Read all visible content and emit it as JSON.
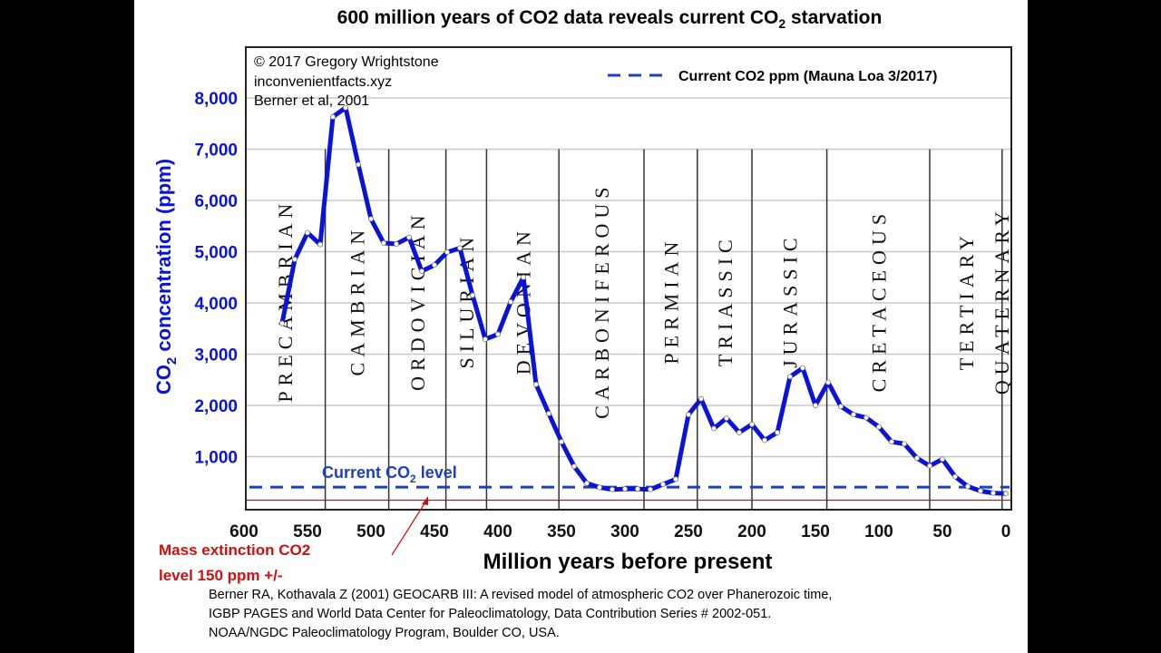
{
  "chart_data": {
    "type": "line",
    "title": "600 million years of CO2 data reveals current CO",
    "title_sub": "2",
    "title_end": " starvation",
    "credits": [
      "© 2017 Gregory Wrightstone",
      "inconvenientfacts.xyz",
      "Berner et al, 2001"
    ],
    "legend": {
      "label": "Current CO2 ppm (Mauna Loa 3/2017)",
      "position": "top-right",
      "style": "dashed",
      "color": "#1f3fbf"
    },
    "ylabel": "CO",
    "ylabel_sub": "2",
    "ylabel_end": " concentration (ppm)",
    "xlabel": "Million years before present",
    "xlim": [
      600,
      0
    ],
    "ylim": [
      0,
      9000
    ],
    "x_ticks": [
      "600",
      "550",
      "500",
      "450",
      "400",
      "350",
      "300",
      "250",
      "200",
      "150",
      "100",
      "50",
      "0"
    ],
    "x_tick_values": [
      600,
      550,
      500,
      450,
      400,
      350,
      300,
      250,
      200,
      150,
      100,
      50,
      0
    ],
    "y_ticks": [
      "1,000",
      "2,000",
      "3,000",
      "4,000",
      "5,000",
      "6,000",
      "7,000",
      "8,000"
    ],
    "y_tick_values": [
      1000,
      2000,
      3000,
      4000,
      5000,
      6000,
      7000,
      8000
    ],
    "grid": true,
    "series": [
      {
        "color": "#0a14d8",
        "x": [
          570,
          560,
          550,
          540,
          530,
          520,
          510,
          500,
          490,
          480,
          470,
          460,
          450,
          440,
          430,
          420,
          410,
          400,
          390,
          380,
          370,
          360,
          350,
          340,
          330,
          320,
          310,
          300,
          290,
          280,
          270,
          260,
          250,
          240,
          230,
          220,
          210,
          200,
          190,
          180,
          170,
          160,
          150,
          140,
          130,
          120,
          110,
          100,
          90,
          80,
          70,
          60,
          50,
          40,
          30,
          20,
          10,
          0
        ],
        "y": [
          3600,
          4850,
          5370,
          5140,
          7630,
          7810,
          6700,
          5640,
          5170,
          5150,
          5280,
          4620,
          4740,
          4990,
          5070,
          4150,
          3290,
          3390,
          4020,
          4500,
          2410,
          1840,
          1290,
          810,
          480,
          400,
          360,
          370,
          370,
          360,
          460,
          560,
          1820,
          2130,
          1550,
          1750,
          1470,
          1630,
          1320,
          1470,
          2560,
          2730,
          2000,
          2450,
          1980,
          1820,
          1760,
          1580,
          1290,
          1250,
          970,
          820,
          950,
          610,
          420,
          330,
          290,
          280
        ]
      }
    ],
    "current_level": {
      "ppm": 405,
      "label": "Current CO",
      "label_sub": "2",
      "label_end": " level",
      "color": "#1f3fbf"
    },
    "extinction_level": {
      "ppm": 150,
      "color": "#d01010",
      "annotation": [
        "Mass extinction CO2",
        "level 150 ppm +/-"
      ]
    },
    "period_boundaries_mya": [
      536,
      486,
      441,
      409,
      352,
      285,
      243,
      200,
      141,
      60,
      3
    ],
    "periods": [
      "PRECAMBRIAN",
      "CAMBRIAN",
      "ORDOVICIAN",
      "SILURIAN",
      "DEVONIAN",
      "CARBONIFEROUS",
      "PERMIAN",
      "TRIASSIC",
      "JURASSIC",
      "CRETACEOUS",
      "TERTIARY",
      "QUATERNARY"
    ],
    "source": [
      "Berner RA, Kothavala Z (2001) GEOCARB III: A revised model of atmospheric CO2 over Phanerozoic time,",
      "IGBP PAGES and World Data Center for Paleoclimatology, Data Contribution Series # 2002-051.",
      "NOAA/NGDC Paleoclimatology Program, Boulder CO, USA."
    ]
  }
}
